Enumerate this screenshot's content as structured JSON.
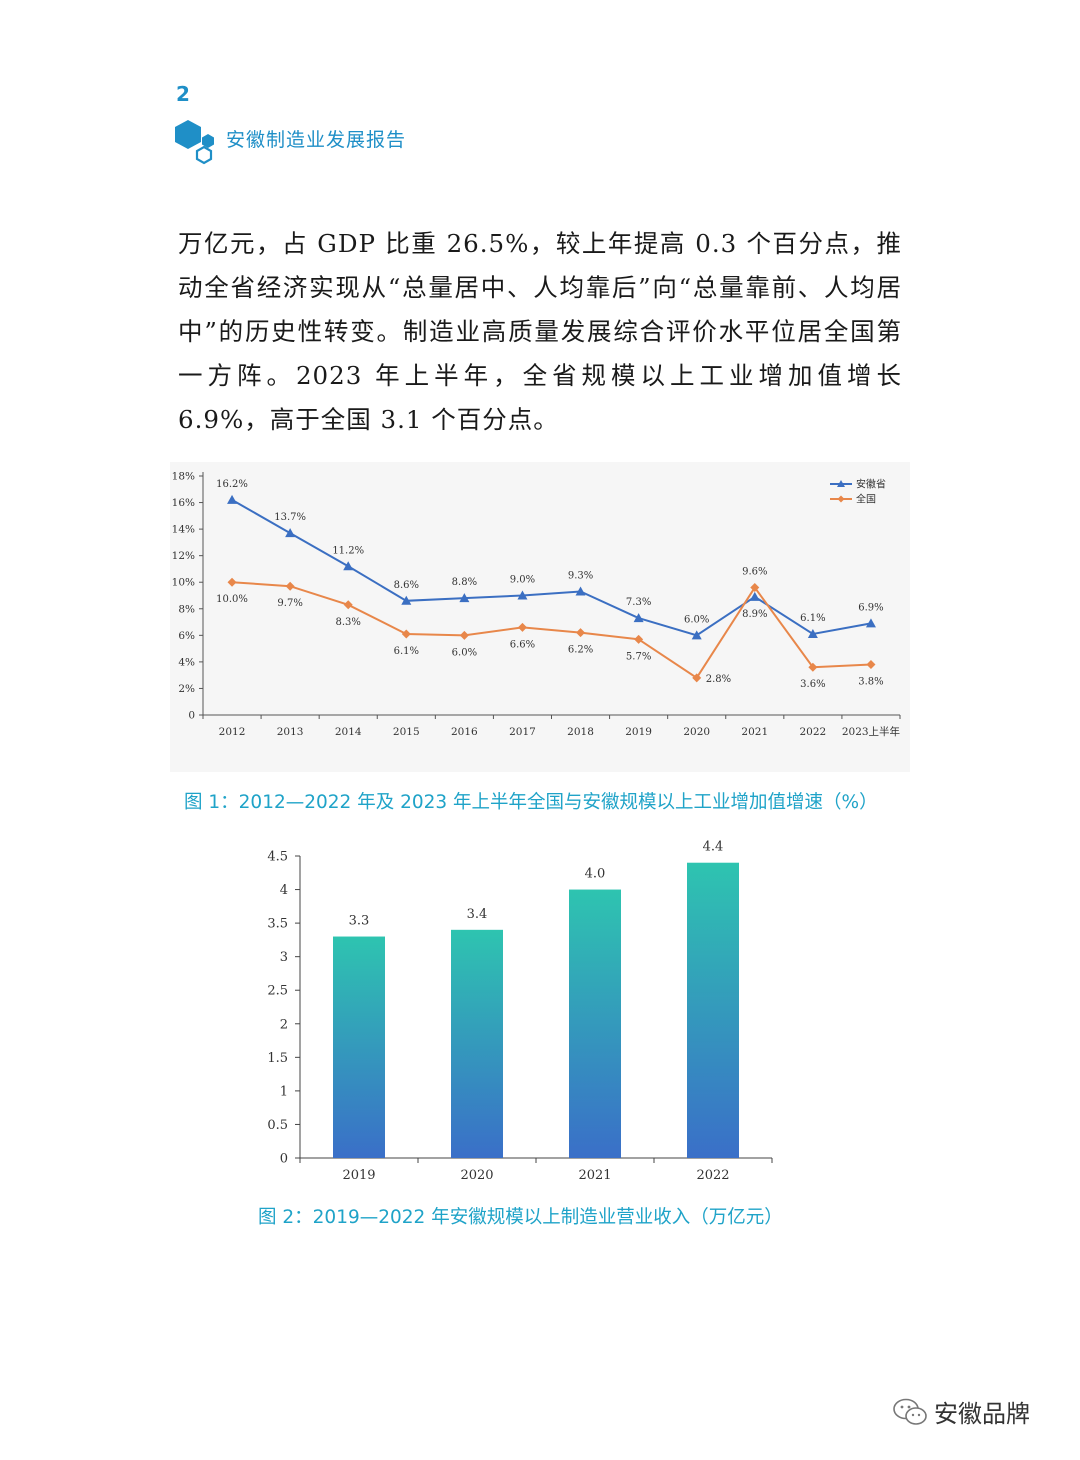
{
  "header": {
    "page_number": "2",
    "book_title": "安徽制造业发展报告"
  },
  "body": {
    "paragraph": "万亿元，占 GDP 比重 26.5%，较上年提高 0.3 个百分点，推动全省经济实现从“总量居中、人均靠后”向“总量靠前、人均居中”的历史性转变。制造业高质量发展综合评价水平位居全国第一方阵。2023 年上半年，全省规模以上工业增加值增长 6.9%，高于全国 3.1 个百分点。"
  },
  "figure1": {
    "caption": "图 1：2012—2022 年及 2023 年上半年全国与安徽规模以上工业增加值增速（%）"
  },
  "figure2": {
    "caption": "图 2：2019—2022 年安徽规模以上制造业营业收入（万亿元）"
  },
  "watermark": {
    "text": "安徽品牌"
  },
  "colors": {
    "accent": "#1f8fc7",
    "caption": "#1fa3c8",
    "anhui_line": "#3b6fc2",
    "national_line": "#e8874a",
    "bar_top": "#2ec4b0",
    "bar_bottom": "#3a6fc8"
  },
  "chart_data": [
    {
      "type": "line",
      "categories": [
        "2012",
        "2013",
        "2014",
        "2015",
        "2016",
        "2017",
        "2018",
        "2019",
        "2020",
        "2021",
        "2022",
        "2023上半年"
      ],
      "series": [
        {
          "name": "安徽省",
          "values": [
            16.2,
            13.7,
            11.2,
            8.6,
            8.8,
            9.0,
            9.3,
            7.3,
            6.0,
            8.9,
            6.1,
            6.9
          ],
          "labels": [
            "16.2%",
            "13.7%",
            "11.2%",
            "8.6%",
            "8.8%",
            "9.0%",
            "9.3%",
            "7.3%",
            "6.0%",
            "8.9%",
            "6.1%",
            "6.9%"
          ]
        },
        {
          "name": "全国",
          "values": [
            10.0,
            9.7,
            8.3,
            6.1,
            6.0,
            6.6,
            6.2,
            5.7,
            2.8,
            9.6,
            3.6,
            3.8
          ],
          "labels": [
            "10.0%",
            "9.7%",
            "8.3%",
            "6.1%",
            "6.0%",
            "6.6%",
            "6.2%",
            "5.7%",
            "2.8%",
            "9.6%",
            "3.6%",
            "3.8%"
          ]
        }
      ],
      "yticks": [
        "0",
        "2%",
        "4%",
        "6%",
        "8%",
        "10%",
        "12%",
        "14%",
        "16%",
        "18%"
      ],
      "ylim": [
        0,
        18
      ],
      "legend_position": "top-right"
    },
    {
      "type": "bar",
      "categories": [
        "2019",
        "2020",
        "2021",
        "2022"
      ],
      "values": [
        3.3,
        3.4,
        4.0,
        4.4
      ],
      "labels": [
        "3.3",
        "3.4",
        "4.0",
        "4.4"
      ],
      "yticks": [
        "0",
        "0.5",
        "1",
        "1.5",
        "2",
        "2.5",
        "3",
        "3.5",
        "4",
        "4.5"
      ],
      "ylim": [
        0,
        4.5
      ]
    }
  ]
}
